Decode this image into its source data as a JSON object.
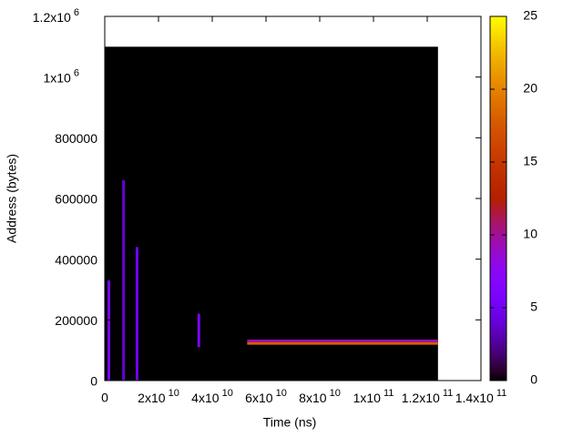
{
  "chart_data": {
    "type": "heatmap",
    "xlabel": "Time (ns)",
    "ylabel": "Address (bytes)",
    "xlim": [
      0,
      140000000000
    ],
    "ylim": [
      0,
      1200000
    ],
    "zlim": [
      0,
      25
    ],
    "xticks": [
      0,
      {
        "value": 20000000000,
        "label": "2x10",
        "exponent": "10"
      },
      {
        "value": 40000000000,
        "label": "4x10",
        "exponent": "10"
      },
      {
        "value": 60000000000,
        "label": "6x10",
        "exponent": "10"
      },
      {
        "value": 80000000000,
        "label": "8x10",
        "exponent": "10"
      },
      {
        "value": 100000000000,
        "label": "1x10",
        "exponent": "11"
      },
      {
        "value": 120000000000,
        "label": "1.2x10",
        "exponent": "11"
      },
      {
        "value": 140000000000,
        "label": "1.4x10",
        "exponent": "11"
      }
    ],
    "yticks": [
      0,
      200000,
      400000,
      600000,
      800000,
      {
        "value": 1000000,
        "label": "1x10",
        "exponent": "6"
      },
      {
        "value": 1200000,
        "label": "1.2x10",
        "exponent": "6"
      }
    ],
    "zticks": [
      0,
      5,
      10,
      15,
      20,
      25
    ],
    "palette": "gnuplot",
    "cells": [
      {
        "x": [
          0,
          124000000000
        ],
        "y": [
          0,
          1100000
        ],
        "value": 0
      },
      {
        "x": [
          1000000000,
          2000000000
        ],
        "y": [
          0,
          330000
        ],
        "value": 6
      },
      {
        "x": [
          6500000000,
          7500000000
        ],
        "y": [
          0,
          660000
        ],
        "value": 4
      },
      {
        "x": [
          11500000000,
          12500000000
        ],
        "y": [
          0,
          440000
        ],
        "value": 5
      },
      {
        "x": [
          34500000000,
          35500000000
        ],
        "y": [
          110000,
          220000
        ],
        "value": 6
      },
      {
        "x": [
          53000000000,
          124000000000
        ],
        "y": [
          127000,
          135000
        ],
        "value": 9
      },
      {
        "x": [
          53000000000,
          124000000000
        ],
        "y": [
          118000,
          127000
        ],
        "value": 18
      }
    ]
  }
}
